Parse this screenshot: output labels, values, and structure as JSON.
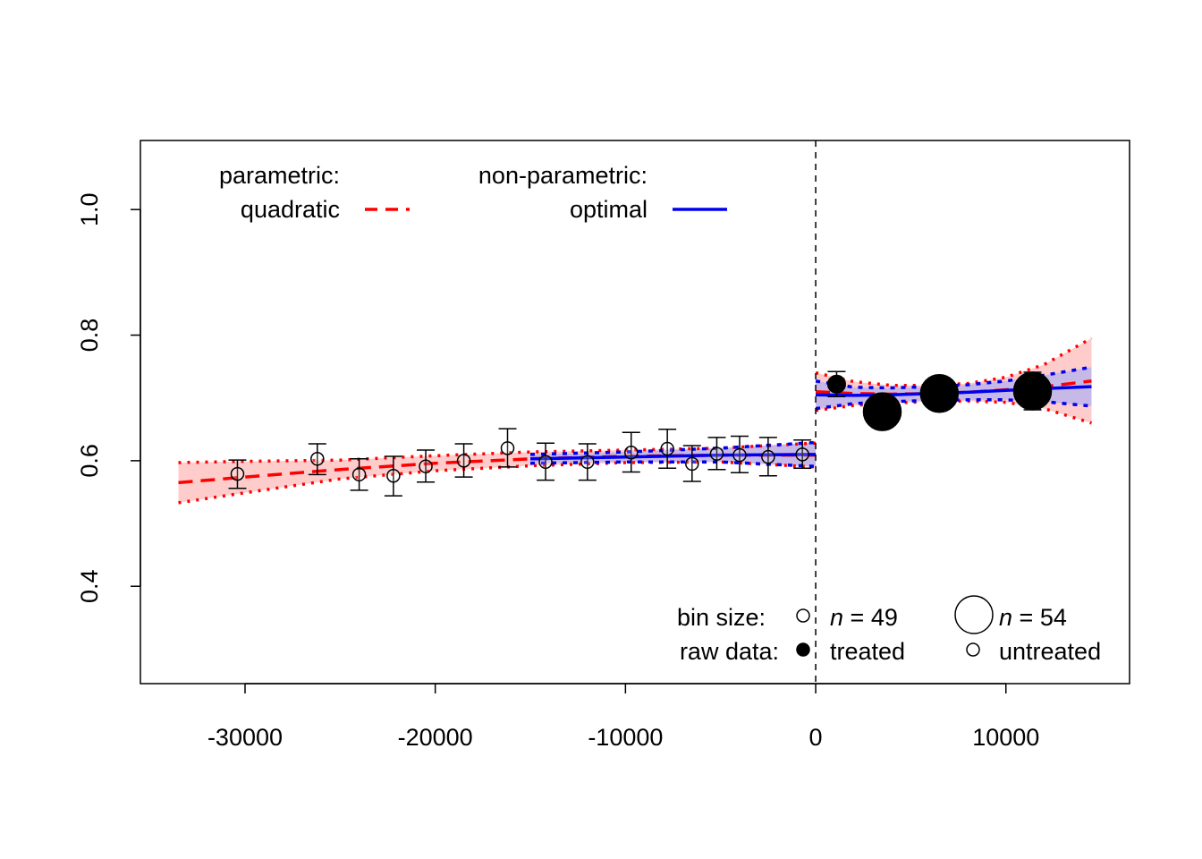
{
  "chart_data": {
    "type": "scatter",
    "title": "",
    "xlabel": "",
    "ylabel": "",
    "xlim": [
      -35500,
      16500
    ],
    "ylim": [
      0.245,
      1.11
    ],
    "x_ticks": [
      -30000,
      -20000,
      -10000,
      0,
      10000
    ],
    "x_tick_labels": [
      "-30000",
      "-20000",
      "-10000",
      "0",
      "10000"
    ],
    "y_ticks": [
      0.4,
      0.6,
      0.8,
      1.0
    ],
    "y_tick_labels": [
      "0.4",
      "0.6",
      "0.8",
      "1.0"
    ],
    "cutoff": 0,
    "grid": false,
    "colors": {
      "parametric": "#ff0000",
      "parametric_band": "#ffcccc",
      "nonparametric": "#0000ee",
      "nonparametric_band": "#b3b3f0",
      "points": "#000000"
    },
    "untreated_bins": [
      {
        "x": -30400,
        "y": 0.579,
        "lo": 0.556,
        "hi": 0.601
      },
      {
        "x": -26200,
        "y": 0.603,
        "lo": 0.578,
        "hi": 0.627
      },
      {
        "x": -24000,
        "y": 0.578,
        "lo": 0.553,
        "hi": 0.603
      },
      {
        "x": -22200,
        "y": 0.576,
        "lo": 0.544,
        "hi": 0.607
      },
      {
        "x": -20500,
        "y": 0.591,
        "lo": 0.566,
        "hi": 0.617
      },
      {
        "x": -18500,
        "y": 0.6,
        "lo": 0.574,
        "hi": 0.627
      },
      {
        "x": -16200,
        "y": 0.62,
        "lo": 0.59,
        "hi": 0.651
      },
      {
        "x": -14200,
        "y": 0.598,
        "lo": 0.569,
        "hi": 0.628
      },
      {
        "x": -12000,
        "y": 0.598,
        "lo": 0.569,
        "hi": 0.627
      },
      {
        "x": -9700,
        "y": 0.613,
        "lo": 0.582,
        "hi": 0.645
      },
      {
        "x": -7800,
        "y": 0.619,
        "lo": 0.588,
        "hi": 0.65
      },
      {
        "x": -6500,
        "y": 0.595,
        "lo": 0.567,
        "hi": 0.624
      },
      {
        "x": -5200,
        "y": 0.611,
        "lo": 0.586,
        "hi": 0.637
      },
      {
        "x": -4000,
        "y": 0.609,
        "lo": 0.581,
        "hi": 0.639
      },
      {
        "x": -2500,
        "y": 0.606,
        "lo": 0.576,
        "hi": 0.637
      },
      {
        "x": -700,
        "y": 0.61,
        "lo": 0.588,
        "hi": 0.633
      }
    ],
    "treated_bins": [
      {
        "x": 1100,
        "y": 0.722,
        "lo": 0.702,
        "hi": 0.742,
        "n": 50
      },
      {
        "x": 3500,
        "y": 0.678,
        "lo": 0.662,
        "hi": 0.694,
        "n": 54
      },
      {
        "x": 6500,
        "y": 0.707,
        "lo": 0.69,
        "hi": 0.724,
        "n": 54
      },
      {
        "x": 11400,
        "y": 0.711,
        "lo": 0.681,
        "hi": 0.741,
        "n": 54
      }
    ],
    "parametric_left": {
      "x": [
        -33500,
        -30000,
        -25000,
        -20000,
        -15000,
        -10000,
        -5000,
        0
      ],
      "y": [
        0.565,
        0.574,
        0.586,
        0.596,
        0.603,
        0.607,
        0.609,
        0.609
      ],
      "lo": [
        0.533,
        0.549,
        0.571,
        0.584,
        0.592,
        0.597,
        0.598,
        0.59
      ],
      "hi": [
        0.597,
        0.599,
        0.601,
        0.608,
        0.614,
        0.617,
        0.62,
        0.628
      ]
    },
    "parametric_right": {
      "x": [
        0,
        2000,
        4000,
        6000,
        8000,
        10000,
        12000,
        14500
      ],
      "y": [
        0.71,
        0.707,
        0.706,
        0.707,
        0.709,
        0.713,
        0.718,
        0.727
      ],
      "lo": [
        0.68,
        0.688,
        0.692,
        0.694,
        0.695,
        0.693,
        0.683,
        0.66
      ],
      "hi": [
        0.74,
        0.726,
        0.72,
        0.72,
        0.723,
        0.733,
        0.753,
        0.795
      ]
    },
    "nonparametric_left": {
      "x": [
        -15000,
        -10000,
        -5000,
        0
      ],
      "y": [
        0.603,
        0.606,
        0.609,
        0.61
      ],
      "lo": [
        0.596,
        0.598,
        0.598,
        0.591
      ],
      "hi": [
        0.61,
        0.614,
        0.62,
        0.629
      ]
    },
    "nonparametric_right": {
      "x": [
        0,
        2000,
        4000,
        6000,
        8000,
        10000,
        12000,
        14500
      ],
      "y": [
        0.705,
        0.704,
        0.705,
        0.707,
        0.709,
        0.712,
        0.715,
        0.718
      ],
      "lo": [
        0.683,
        0.691,
        0.694,
        0.696,
        0.697,
        0.697,
        0.694,
        0.687
      ],
      "hi": [
        0.727,
        0.717,
        0.716,
        0.718,
        0.721,
        0.727,
        0.736,
        0.749
      ]
    },
    "legend_top": {
      "parametric_title": "parametric:",
      "parametric_label": "quadratic",
      "nonparametric_title": "non-parametric:",
      "nonparametric_label": "optimal",
      "placement": "top-left"
    },
    "legend_bottom": {
      "bin_size_label": "bin size:",
      "small_n": "49",
      "large_n": "54",
      "raw_data_label": "raw data:",
      "treated_label": "treated",
      "untreated_label": "untreated",
      "placement": "bottom-right"
    }
  }
}
